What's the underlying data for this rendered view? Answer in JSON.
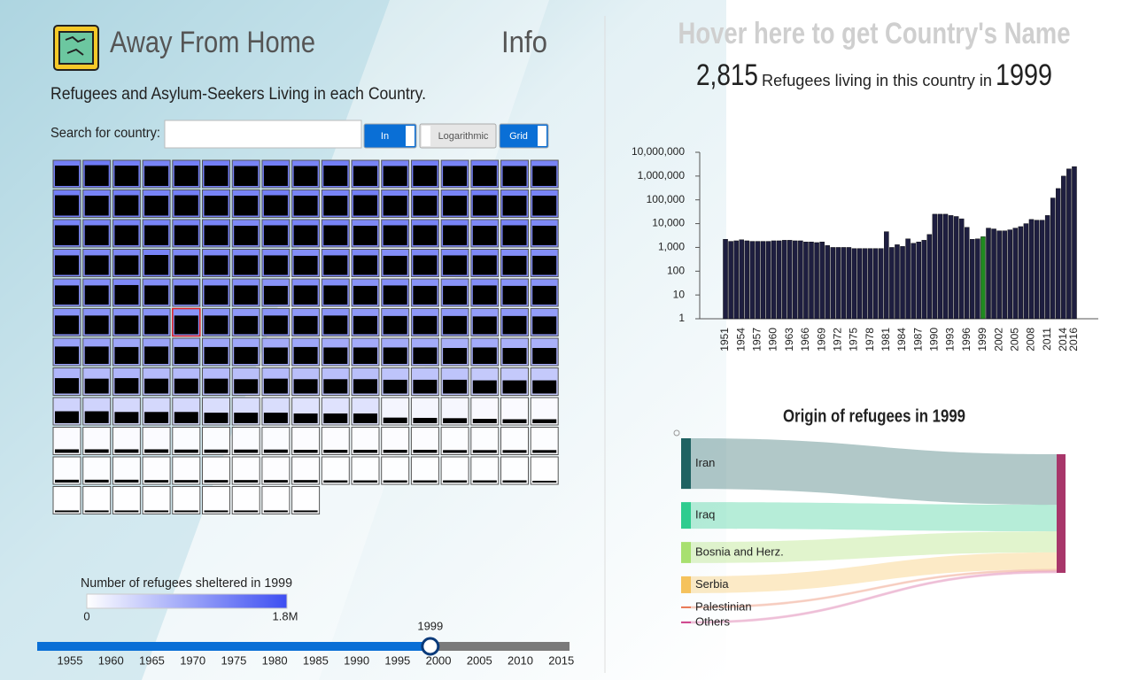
{
  "header": {
    "title": "Away From Home",
    "info": "Info",
    "subtitle": "Refugees and Asylum-Seekers Living in each Country."
  },
  "search": {
    "label": "Search for country:"
  },
  "toggles": [
    {
      "label": "In",
      "on": true
    },
    {
      "label": "Logarithmic",
      "on": false
    },
    {
      "label": "Grid",
      "on": true
    }
  ],
  "tiles": {
    "selected": [
      5,
      4
    ],
    "rows": [
      [
        1300000,
        1350000,
        1300000,
        1250000,
        1300000,
        1300000,
        1250000,
        1300000,
        1250000,
        1300000,
        1250000,
        1250000,
        1300000,
        1250000,
        1300000,
        1250000,
        1250000
      ],
      [
        1300000,
        1250000,
        1300000,
        1250000,
        1300000,
        1250000,
        1250000,
        1300000,
        1250000,
        1250000,
        1300000,
        1250000,
        1250000,
        1250000,
        1300000,
        1250000,
        1250000
      ],
      [
        1250000,
        1250000,
        1250000,
        1250000,
        1250000,
        1250000,
        1200000,
        1250000,
        1250000,
        1250000,
        1200000,
        1250000,
        1250000,
        1250000,
        1200000,
        1250000,
        1200000
      ],
      [
        1200000,
        1200000,
        1200000,
        1250000,
        1200000,
        1200000,
        1200000,
        1200000,
        1150000,
        1200000,
        1200000,
        1150000,
        1200000,
        1200000,
        1200000,
        1150000,
        1150000
      ],
      [
        1150000,
        1150000,
        1200000,
        1150000,
        1150000,
        1150000,
        1150000,
        1100000,
        1150000,
        1150000,
        1100000,
        1150000,
        1100000,
        1100000,
        1150000,
        1100000,
        1100000
      ],
      [
        1100000,
        1100000,
        1100000,
        1100000,
        1100000,
        1100000,
        1050000,
        1100000,
        1050000,
        1100000,
        1050000,
        1050000,
        1050000,
        1050000,
        1000000,
        1050000,
        1000000
      ],
      [
        950000,
        950000,
        900000,
        950000,
        900000,
        900000,
        900000,
        850000,
        900000,
        850000,
        850000,
        850000,
        850000,
        800000,
        850000,
        800000,
        800000
      ],
      [
        750000,
        700000,
        750000,
        700000,
        700000,
        700000,
        650000,
        700000,
        650000,
        650000,
        650000,
        600000,
        600000,
        600000,
        550000,
        550000,
        550000
      ],
      [
        450000,
        450000,
        400000,
        400000,
        400000,
        350000,
        350000,
        350000,
        300000,
        300000,
        300000,
        100000,
        90000,
        80000,
        60000,
        50000,
        50000
      ],
      [
        40000,
        40000,
        40000,
        40000,
        35000,
        35000,
        35000,
        35000,
        30000,
        30000,
        30000,
        30000,
        30000,
        25000,
        25000,
        25000,
        25000
      ],
      [
        25000,
        25000,
        25000,
        20000,
        20000,
        20000,
        20000,
        20000,
        20000,
        15000,
        15000,
        15000,
        15000,
        15000,
        15000,
        15000,
        10000
      ],
      [
        10000,
        10000,
        10000,
        10000,
        10000,
        10000,
        10000,
        10000,
        10000
      ]
    ]
  },
  "legend": {
    "title": "Number of refugees sheltered in 1999",
    "min": 0,
    "max": {
      "value": 1800000,
      "label": "1.8M"
    },
    "color_low": "#ffffff",
    "color_high": "#3d4ef2"
  },
  "slider": {
    "xlim": [
      1951,
      2016
    ],
    "ticks": [
      1955,
      1960,
      1965,
      1970,
      1975,
      1980,
      1985,
      1990,
      1995,
      2000,
      2005,
      2010,
      2015
    ],
    "value": 1999
  },
  "detail": {
    "hover": "Hover here to get Country's Name",
    "count": {
      "value": 2815,
      "label": "2,815"
    },
    "text": "Refugees living in this country in",
    "year": 1999
  },
  "chart_data": [
    {
      "type": "bar",
      "log_scale": true,
      "color": "#1e1e40",
      "highlight": "1999",
      "highlight_color": "#1f8a1f",
      "categories": [
        "1951",
        null,
        null,
        "1954",
        null,
        null,
        "1957",
        null,
        null,
        "1960",
        null,
        null,
        "1963",
        null,
        null,
        "1966",
        null,
        null,
        "1969",
        null,
        null,
        "1972",
        null,
        null,
        "1975",
        null,
        null,
        "1978",
        null,
        null,
        "1981",
        null,
        null,
        "1984",
        null,
        null,
        "1987",
        null,
        null,
        "1990",
        null,
        null,
        "1993",
        null,
        null,
        "1996",
        null,
        null,
        "1999",
        null,
        null,
        "2002",
        null,
        null,
        "2005",
        null,
        null,
        "2008",
        null,
        null,
        "2011",
        null,
        null,
        "2014",
        null,
        "2016"
      ],
      "values": [
        2200,
        1800,
        1900,
        2100,
        1900,
        1800,
        1800,
        1800,
        1800,
        1900,
        1900,
        2000,
        2000,
        1900,
        1900,
        1700,
        1700,
        1600,
        1700,
        1200,
        1000,
        1000,
        1000,
        1000,
        900,
        900,
        900,
        900,
        900,
        900,
        4600,
        1000,
        1300,
        1100,
        2300,
        1500,
        1700,
        2000,
        3500,
        25000,
        25000,
        25000,
        22000,
        20000,
        16000,
        7000,
        2200,
        2300,
        2815,
        6500,
        6000,
        5000,
        5000,
        5500,
        6500,
        7500,
        10000,
        15000,
        14000,
        14000,
        22000,
        120000,
        300000,
        1000000,
        2000000,
        2500000
      ],
      "ylim": [
        1,
        10000000
      ],
      "yticks": [
        1,
        10,
        100,
        {
          "value": 1000,
          "label": "1,000"
        },
        {
          "value": 10000,
          "label": "10,000"
        },
        {
          "value": 100000,
          "label": "100,000"
        },
        {
          "value": 1000000,
          "label": "1,000,000"
        },
        {
          "value": 10000000,
          "label": "10,000,000"
        }
      ]
    },
    {
      "type": "sankey",
      "title": "Origin of refugees in 1999",
      "target_color": "#a8366a",
      "sources": [
        {
          "name": "Iran",
          "value": 1200,
          "color": "#1f6262"
        },
        {
          "name": "Iraq",
          "value": 630,
          "color": "#2ecc8f"
        },
        {
          "name": "Bosnia and Herz.",
          "value": 500,
          "color": "#a8e070"
        },
        {
          "name": "Serbia",
          "value": 400,
          "color": "#f5c25c"
        },
        {
          "name": "Palestinian",
          "value": 40,
          "color": "#e8704a"
        },
        {
          "name": "Others",
          "value": 45,
          "color": "#d04a90"
        }
      ]
    }
  ]
}
